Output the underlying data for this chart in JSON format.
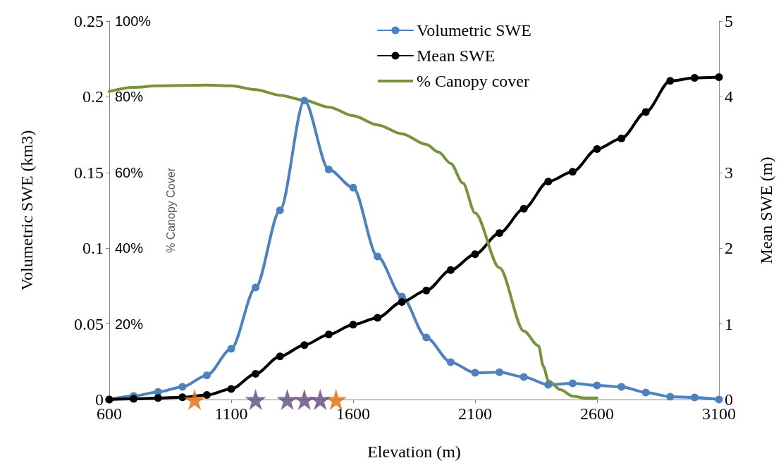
{
  "chart_data": {
    "type": "line",
    "xlabel": "Elevation (m)",
    "ylabel": "Volumetric SWE (km3)",
    "y2label": "Mean SWE (m)",
    "y3label": "% Canopy Cover",
    "xlim": [
      600,
      3100
    ],
    "xticks": [
      600,
      1100,
      1600,
      2100,
      2600,
      3100
    ],
    "ylim": [
      0,
      0.25
    ],
    "yticks": [
      0,
      0.05,
      0.1,
      0.15,
      0.2,
      0.25
    ],
    "y2lim": [
      0,
      5
    ],
    "y2ticks": [
      0,
      1,
      2,
      3,
      4,
      5
    ],
    "y3lim": [
      0,
      100
    ],
    "y3ticks": [
      {
        "value": 0,
        "label": null
      },
      {
        "value": 20,
        "label": "20%"
      },
      {
        "value": 40,
        "label": "40%"
      },
      {
        "value": 60,
        "label": "60%"
      },
      {
        "value": 80,
        "label": "80%"
      },
      {
        "value": 100,
        "label": "100%"
      }
    ],
    "grid": false,
    "legend": "top",
    "series": [
      {
        "name": "Volumetric SWE",
        "color": "#4f81bd",
        "marker": "circle",
        "x": [
          600,
          700,
          800,
          900,
          1000,
          1100,
          1200,
          1300,
          1400,
          1500,
          1600,
          1700,
          1800,
          1900,
          2000,
          2100,
          2200,
          2300,
          2400,
          2500,
          2600,
          2700,
          2800,
          2900,
          3000,
          3100
        ],
        "values": [
          0,
          0.0023,
          0.005,
          0.0084,
          0.016,
          0.0335,
          0.074,
          0.125,
          0.1975,
          0.152,
          0.14,
          0.0945,
          0.068,
          0.041,
          0.0247,
          0.0177,
          0.018,
          0.0149,
          0.0098,
          0.0107,
          0.0093,
          0.0084,
          0.0047,
          0.0019,
          0.0014,
          0
        ]
      },
      {
        "name": "Mean SWE",
        "color": "#000000",
        "marker": "circle",
        "axis": "y2",
        "x": [
          600,
          700,
          800,
          900,
          1000,
          1100,
          1200,
          1300,
          1400,
          1500,
          1600,
          1700,
          1800,
          1900,
          2000,
          2100,
          2200,
          2300,
          2400,
          2500,
          2600,
          2700,
          2800,
          2900,
          3000,
          3100
        ],
        "values": [
          0,
          0.01,
          0.02,
          0.03,
          0.06,
          0.14,
          0.34,
          0.57,
          0.72,
          0.86,
          0.99,
          1.08,
          1.29,
          1.44,
          1.71,
          1.92,
          2.2,
          2.52,
          2.88,
          3.01,
          3.31,
          3.45,
          3.8,
          4.21,
          4.25,
          4.26
        ]
      },
      {
        "name": "% Canopy cover",
        "color": "#77933c",
        "marker": "none",
        "axis": "y3",
        "x": [
          600,
          700,
          800,
          1000,
          1100,
          1200,
          1300,
          1400,
          1500,
          1600,
          1700,
          1800,
          1900,
          1950,
          2000,
          2050,
          2100,
          2200,
          2300,
          2360,
          2380,
          2400,
          2450,
          2500,
          2550,
          2600
        ],
        "values": [
          81.4,
          82.5,
          82.9,
          83.1,
          82.9,
          81.9,
          80.4,
          79.1,
          77.3,
          75,
          72.6,
          70.2,
          67.4,
          65.4,
          62.4,
          57.2,
          49.3,
          34.8,
          18.1,
          14.2,
          8.8,
          5,
          2.6,
          0.9,
          0.4,
          0.4
        ]
      },
      {
        "type": "scatter",
        "color": "#e46c0a",
        "marker": "star",
        "x": [
          950,
          1530
        ],
        "values": [
          0,
          0
        ]
      },
      {
        "type": "scatter",
        "color": "#604a7b",
        "marker": "star",
        "x": [
          1200,
          1330,
          1400,
          1465
        ],
        "values": [
          0,
          0,
          0,
          0
        ]
      }
    ]
  }
}
